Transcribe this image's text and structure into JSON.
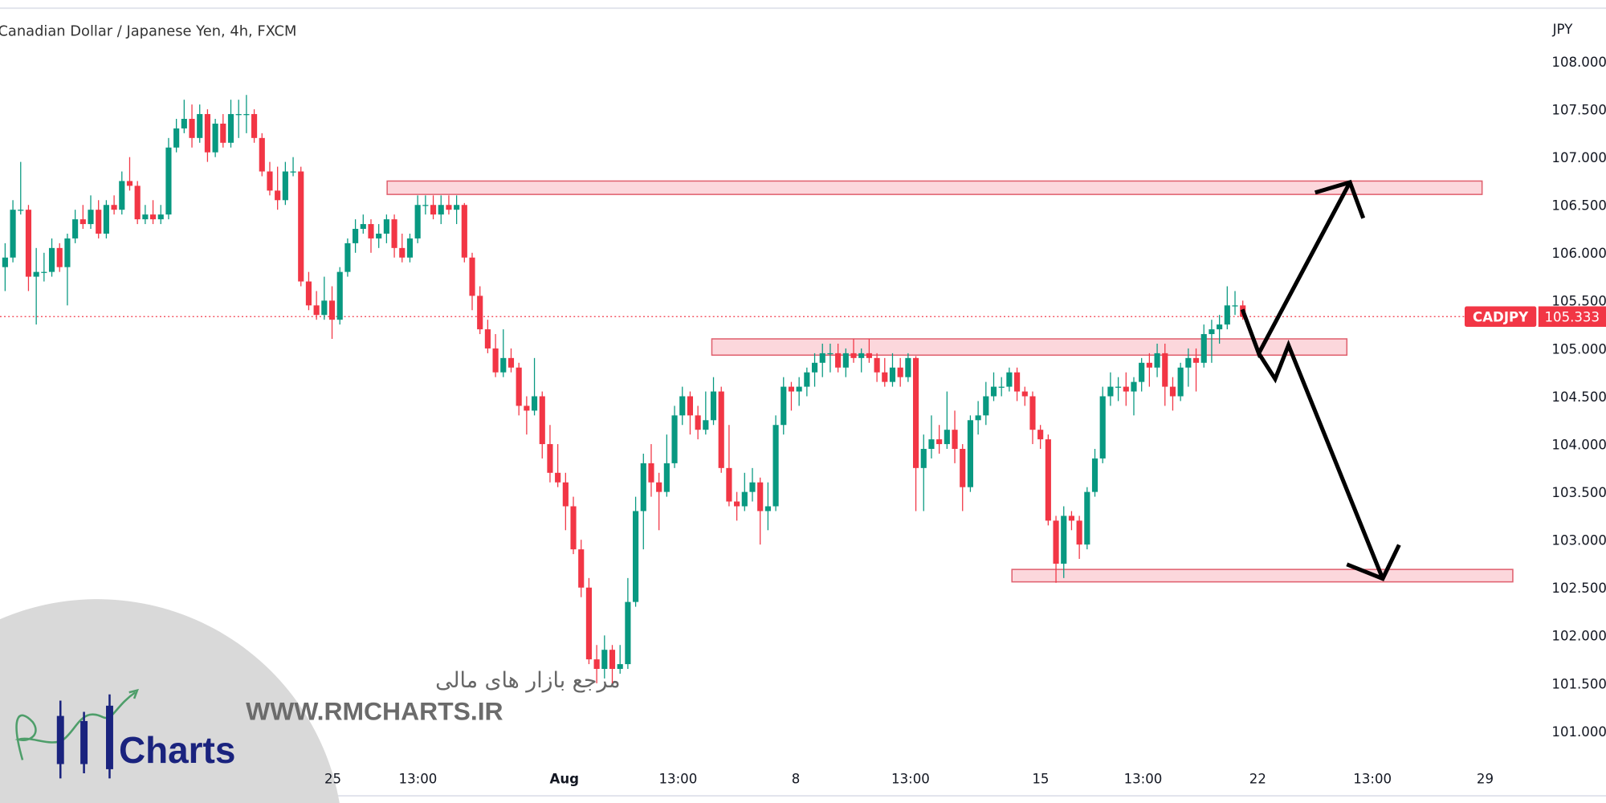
{
  "header": {
    "title": "Canadian Dollar / Japanese Yen, 4h, FXCM"
  },
  "price_axis": {
    "currency": "JPY"
  },
  "last_price": {
    "symbol": "CADJPY",
    "value": "105.333",
    "color": "#f23645"
  },
  "watermark": {
    "tagline_fa": "مرجع بازار های مالی",
    "url": "WWW.RMCHARTS.IR",
    "logo_text": "Charts",
    "logo_letters": "RM"
  },
  "colors": {
    "up": "#089981",
    "down": "#f23645",
    "zone_fill": "#fcd7dc",
    "zone_border": "#e0606e",
    "annotation": "#000000"
  },
  "chart_data": {
    "type": "candlestick",
    "symbol": "CADJPY",
    "timeframe": "4h",
    "ylim": [
      100.6,
      108.3
    ],
    "y_ticks": [
      "108.000",
      "107.500",
      "107.000",
      "106.500",
      "106.000",
      "105.500",
      "105.000",
      "104.500",
      "104.000",
      "103.500",
      "103.000",
      "102.500",
      "102.000",
      "101.500",
      "101.000"
    ],
    "x_ticks": [
      "25",
      "13:00",
      "Aug",
      "13:00",
      "8",
      "13:00",
      "15",
      "13:00",
      "22",
      "13:00",
      "29"
    ],
    "grid": false,
    "ohlc": [
      [
        105.85,
        106.1,
        105.6,
        105.95
      ],
      [
        105.95,
        106.55,
        105.9,
        106.45
      ],
      [
        106.45,
        106.95,
        106.4,
        106.45
      ],
      [
        106.45,
        106.5,
        105.6,
        105.75
      ],
      [
        105.75,
        106.05,
        105.25,
        105.8
      ],
      [
        105.8,
        106.0,
        105.7,
        105.8
      ],
      [
        105.8,
        106.15,
        105.75,
        106.05
      ],
      [
        106.05,
        106.1,
        105.8,
        105.85
      ],
      [
        105.85,
        106.2,
        105.45,
        106.15
      ],
      [
        106.15,
        106.45,
        106.1,
        106.35
      ],
      [
        106.35,
        106.5,
        106.25,
        106.3
      ],
      [
        106.3,
        106.6,
        106.25,
        106.45
      ],
      [
        106.45,
        106.55,
        106.15,
        106.2
      ],
      [
        106.2,
        106.55,
        106.15,
        106.5
      ],
      [
        106.5,
        106.6,
        106.4,
        106.45
      ],
      [
        106.45,
        106.85,
        106.4,
        106.75
      ],
      [
        106.75,
        107.0,
        106.65,
        106.7
      ],
      [
        106.7,
        106.75,
        106.3,
        106.35
      ],
      [
        106.35,
        106.5,
        106.3,
        106.4
      ],
      [
        106.4,
        106.55,
        106.3,
        106.35
      ],
      [
        106.35,
        106.5,
        106.3,
        106.4
      ],
      [
        106.4,
        107.2,
        106.35,
        107.1
      ],
      [
        107.1,
        107.4,
        107.05,
        107.3
      ],
      [
        107.3,
        107.6,
        107.25,
        107.4
      ],
      [
        107.4,
        107.55,
        107.1,
        107.2
      ],
      [
        107.2,
        107.55,
        107.15,
        107.45
      ],
      [
        107.45,
        107.5,
        106.95,
        107.05
      ],
      [
        107.05,
        107.4,
        107.0,
        107.35
      ],
      [
        107.35,
        107.45,
        107.1,
        107.15
      ],
      [
        107.15,
        107.6,
        107.1,
        107.45
      ],
      [
        107.45,
        107.6,
        107.2,
        107.45
      ],
      [
        107.45,
        107.65,
        107.25,
        107.45
      ],
      [
        107.45,
        107.5,
        107.15,
        107.2
      ],
      [
        107.2,
        107.25,
        106.8,
        106.85
      ],
      [
        106.85,
        106.95,
        106.6,
        106.65
      ],
      [
        106.65,
        106.9,
        106.45,
        106.55
      ],
      [
        106.55,
        106.95,
        106.5,
        106.85
      ],
      [
        106.85,
        107.0,
        106.8,
        106.85
      ],
      [
        106.85,
        106.9,
        105.65,
        105.7
      ],
      [
        105.7,
        105.8,
        105.4,
        105.45
      ],
      [
        105.45,
        105.6,
        105.3,
        105.35
      ],
      [
        105.35,
        105.75,
        105.3,
        105.5
      ],
      [
        105.5,
        105.65,
        105.1,
        105.3
      ],
      [
        105.3,
        105.85,
        105.25,
        105.8
      ],
      [
        105.8,
        106.15,
        105.75,
        106.1
      ],
      [
        106.1,
        106.35,
        106.0,
        106.25
      ],
      [
        106.25,
        106.4,
        106.2,
        106.3
      ],
      [
        106.3,
        106.35,
        106.0,
        106.15
      ],
      [
        106.15,
        106.3,
        106.05,
        106.2
      ],
      [
        106.2,
        106.4,
        106.1,
        106.35
      ],
      [
        106.35,
        106.4,
        105.95,
        106.05
      ],
      [
        106.05,
        106.2,
        105.9,
        105.95
      ],
      [
        105.95,
        106.2,
        105.9,
        106.15
      ],
      [
        106.15,
        106.6,
        106.1,
        106.5
      ],
      [
        106.5,
        106.6,
        106.4,
        106.5
      ],
      [
        106.5,
        106.6,
        106.35,
        106.4
      ],
      [
        106.4,
        106.6,
        106.3,
        106.5
      ],
      [
        106.5,
        106.6,
        106.4,
        106.45
      ],
      [
        106.45,
        106.6,
        106.3,
        106.5
      ],
      [
        106.5,
        106.52,
        105.9,
        105.95
      ],
      [
        105.95,
        106.0,
        105.4,
        105.55
      ],
      [
        105.55,
        105.65,
        105.15,
        105.2
      ],
      [
        105.2,
        105.3,
        104.95,
        105.0
      ],
      [
        105.0,
        105.15,
        104.7,
        104.75
      ],
      [
        104.75,
        105.2,
        104.7,
        104.9
      ],
      [
        104.9,
        105.0,
        104.75,
        104.8
      ],
      [
        104.8,
        104.85,
        104.3,
        104.4
      ],
      [
        104.4,
        104.5,
        104.1,
        104.35
      ],
      [
        104.35,
        104.9,
        104.3,
        104.5
      ],
      [
        104.5,
        104.55,
        103.85,
        104.0
      ],
      [
        104.0,
        104.2,
        103.6,
        103.7
      ],
      [
        103.7,
        104.0,
        103.55,
        103.6
      ],
      [
        103.6,
        103.7,
        103.1,
        103.35
      ],
      [
        103.35,
        103.45,
        102.85,
        102.9
      ],
      [
        102.9,
        103.0,
        102.4,
        102.5
      ],
      [
        102.5,
        102.6,
        101.7,
        101.75
      ],
      [
        101.75,
        101.9,
        101.5,
        101.65
      ],
      [
        101.65,
        102.0,
        101.55,
        101.85
      ],
      [
        101.85,
        101.9,
        101.5,
        101.65
      ],
      [
        101.65,
        101.9,
        101.6,
        101.7
      ],
      [
        101.7,
        102.6,
        101.65,
        102.35
      ],
      [
        102.35,
        103.45,
        102.3,
        103.3
      ],
      [
        103.3,
        103.9,
        102.9,
        103.8
      ],
      [
        103.8,
        104.0,
        103.45,
        103.6
      ],
      [
        103.6,
        103.7,
        103.1,
        103.5
      ],
      [
        103.5,
        104.1,
        103.45,
        103.8
      ],
      [
        103.8,
        104.4,
        103.75,
        104.3
      ],
      [
        104.3,
        104.6,
        104.2,
        104.5
      ],
      [
        104.5,
        104.55,
        104.1,
        104.3
      ],
      [
        104.3,
        104.4,
        104.05,
        104.15
      ],
      [
        104.15,
        104.55,
        104.1,
        104.25
      ],
      [
        104.25,
        104.7,
        104.2,
        104.55
      ],
      [
        104.55,
        104.6,
        103.7,
        103.75
      ],
      [
        103.75,
        104.2,
        103.35,
        103.4
      ],
      [
        103.4,
        103.5,
        103.2,
        103.35
      ],
      [
        103.35,
        103.7,
        103.3,
        103.5
      ],
      [
        103.5,
        103.75,
        103.4,
        103.6
      ],
      [
        103.6,
        103.65,
        102.95,
        103.3
      ],
      [
        103.3,
        103.6,
        103.1,
        103.35
      ],
      [
        103.35,
        104.3,
        103.3,
        104.2
      ],
      [
        104.2,
        104.7,
        104.1,
        104.6
      ],
      [
        104.6,
        104.65,
        104.35,
        104.55
      ],
      [
        104.55,
        104.7,
        104.4,
        104.6
      ],
      [
        104.6,
        104.8,
        104.5,
        104.75
      ],
      [
        104.75,
        104.95,
        104.6,
        104.85
      ],
      [
        104.85,
        105.05,
        104.7,
        104.95
      ],
      [
        104.95,
        105.05,
        104.75,
        104.95
      ],
      [
        104.95,
        105.05,
        104.75,
        104.8
      ],
      [
        104.8,
        105.0,
        104.7,
        104.95
      ],
      [
        104.95,
        105.1,
        104.85,
        104.9
      ],
      [
        104.9,
        105.0,
        104.75,
        104.95
      ],
      [
        104.95,
        105.1,
        104.85,
        104.9
      ],
      [
        104.9,
        104.95,
        104.65,
        104.75
      ],
      [
        104.75,
        104.9,
        104.6,
        104.65
      ],
      [
        104.65,
        104.95,
        104.6,
        104.8
      ],
      [
        104.8,
        104.9,
        104.6,
        104.7
      ],
      [
        104.7,
        104.95,
        104.65,
        104.9
      ],
      [
        104.9,
        104.92,
        103.3,
        103.75
      ],
      [
        103.75,
        104.1,
        103.3,
        103.95
      ],
      [
        103.95,
        104.3,
        103.85,
        104.05
      ],
      [
        104.05,
        104.2,
        103.9,
        104.0
      ],
      [
        104.0,
        104.55,
        103.95,
        104.15
      ],
      [
        104.15,
        104.35,
        103.8,
        103.95
      ],
      [
        103.95,
        104.0,
        103.3,
        103.55
      ],
      [
        103.55,
        104.3,
        103.5,
        104.25
      ],
      [
        104.25,
        104.45,
        104.1,
        104.3
      ],
      [
        104.3,
        104.65,
        104.2,
        104.5
      ],
      [
        104.5,
        104.75,
        104.45,
        104.6
      ],
      [
        104.6,
        104.7,
        104.5,
        104.6
      ],
      [
        104.6,
        104.8,
        104.55,
        104.75
      ],
      [
        104.75,
        104.8,
        104.45,
        104.55
      ],
      [
        104.55,
        104.6,
        104.4,
        104.5
      ],
      [
        104.5,
        104.55,
        104.0,
        104.15
      ],
      [
        104.15,
        104.2,
        103.95,
        104.05
      ],
      [
        104.05,
        104.1,
        103.15,
        103.2
      ],
      [
        103.2,
        103.25,
        102.55,
        102.75
      ],
      [
        102.75,
        103.35,
        102.6,
        103.25
      ],
      [
        103.25,
        103.3,
        103.1,
        103.2
      ],
      [
        103.2,
        103.25,
        102.8,
        102.95
      ],
      [
        102.95,
        103.55,
        102.9,
        103.5
      ],
      [
        103.5,
        103.95,
        103.45,
        103.85
      ],
      [
        103.85,
        104.6,
        103.8,
        104.5
      ],
      [
        104.5,
        104.75,
        104.4,
        104.6
      ],
      [
        104.6,
        104.7,
        104.45,
        104.6
      ],
      [
        104.6,
        104.75,
        104.4,
        104.55
      ],
      [
        104.55,
        104.7,
        104.3,
        104.65
      ],
      [
        104.65,
        104.9,
        104.55,
        104.85
      ],
      [
        104.85,
        104.95,
        104.6,
        104.8
      ],
      [
        104.8,
        105.05,
        104.7,
        104.95
      ],
      [
        104.95,
        105.05,
        104.4,
        104.6
      ],
      [
        104.6,
        104.7,
        104.35,
        104.5
      ],
      [
        104.5,
        104.85,
        104.45,
        104.8
      ],
      [
        104.8,
        105.0,
        104.6,
        104.9
      ],
      [
        104.9,
        105.0,
        104.55,
        104.85
      ],
      [
        104.85,
        105.25,
        104.8,
        105.15
      ],
      [
        105.15,
        105.3,
        104.85,
        105.2
      ],
      [
        105.2,
        105.35,
        105.05,
        105.25
      ],
      [
        105.25,
        105.65,
        105.2,
        105.45
      ],
      [
        105.45,
        105.6,
        105.35,
        105.45
      ],
      [
        105.45,
        105.5,
        105.3,
        105.33
      ]
    ],
    "zones": [
      {
        "name": "resistance-zone-top",
        "low": 106.61,
        "high": 106.75
      },
      {
        "name": "resistance-zone-middle",
        "low": 104.93,
        "high": 105.1
      },
      {
        "name": "support-zone-bottom",
        "low": 102.56,
        "high": 102.69
      }
    ],
    "last_price_line": 105.333
  }
}
